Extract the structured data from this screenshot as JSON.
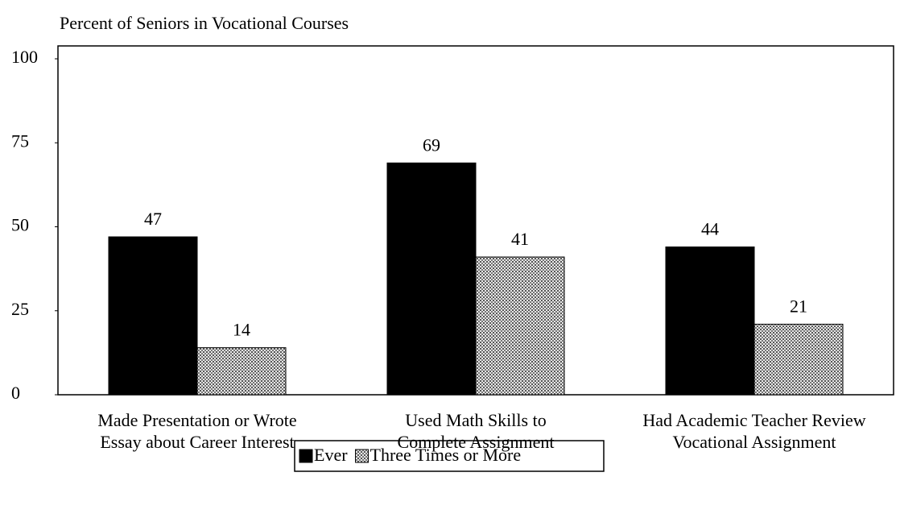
{
  "chart_data": {
    "type": "bar",
    "title": "Percent of Seniors in Vocational Courses",
    "categories": [
      [
        "Made Presentation or Wrote",
        "Essay about Career Interest"
      ],
      [
        "Used Math Skills to",
        "Complete Assignment"
      ],
      [
        "Had Academic Teacher Review",
        "Vocational Assignment"
      ]
    ],
    "series": [
      {
        "name": "Ever",
        "color": "#000000",
        "values": [
          47,
          69,
          44
        ]
      },
      {
        "name": "Three Times or More",
        "color": "#c8c8c8",
        "values": [
          14,
          41,
          21
        ]
      }
    ],
    "ylim": [
      0,
      100
    ],
    "yticks": [
      0,
      25,
      50,
      75,
      100
    ],
    "grid": false,
    "legend": "bottom"
  }
}
